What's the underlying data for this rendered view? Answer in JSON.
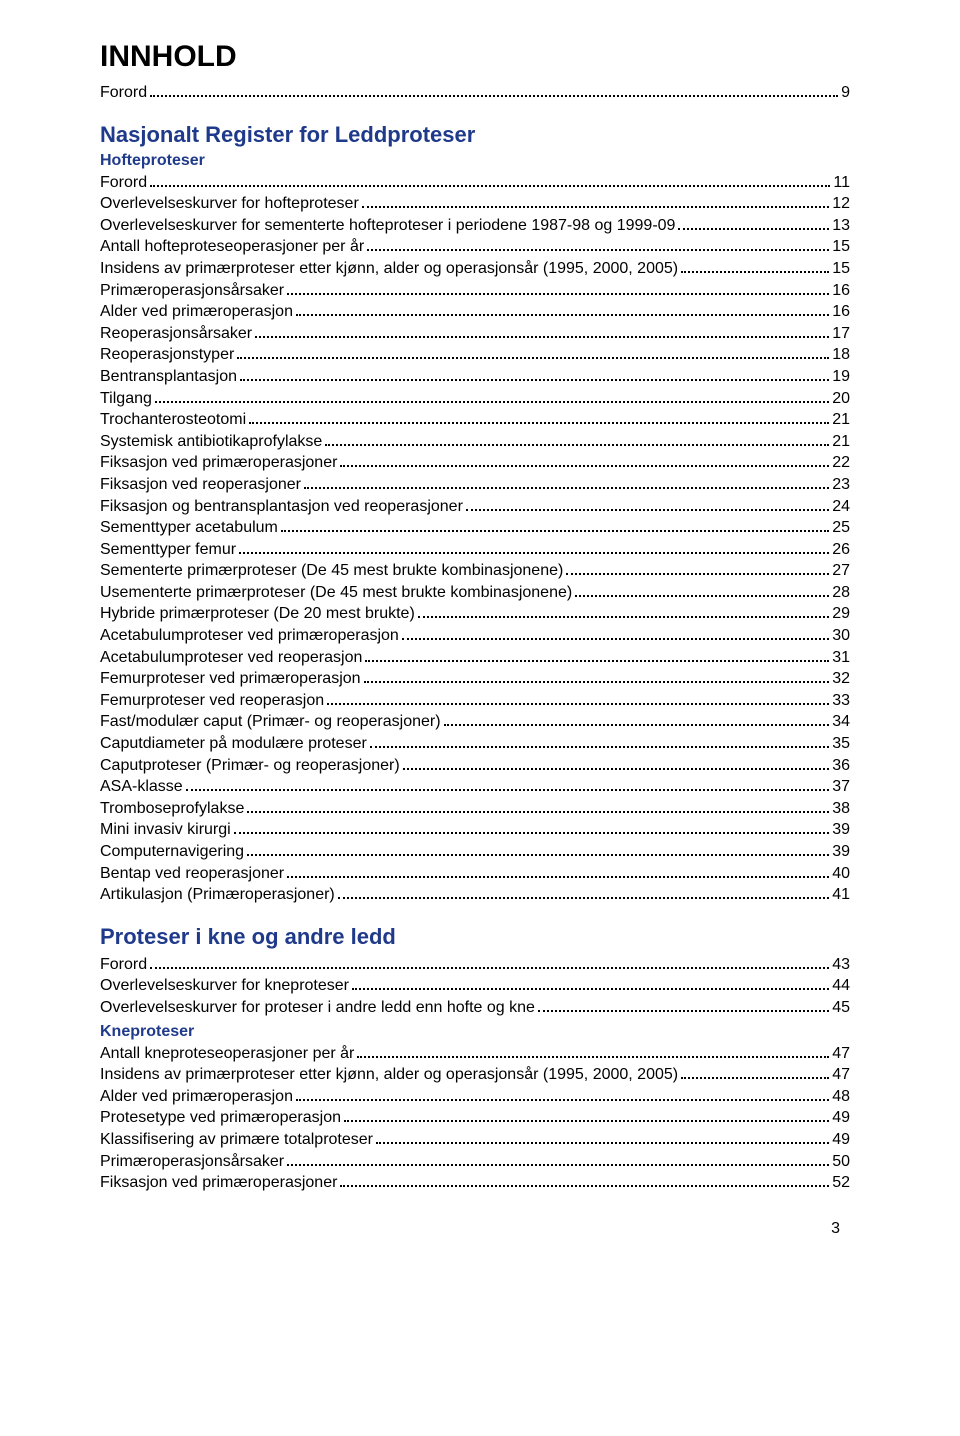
{
  "colors": {
    "text": "#000000",
    "heading_blue": "#1f3a8a",
    "background": "#ffffff",
    "dot_color": "#000000"
  },
  "typography": {
    "title_fontsize": 30,
    "heading_fontsize": 22,
    "subheading_fontsize": 16,
    "body_fontsize": 16,
    "font_family": "Arial"
  },
  "title": "INNHOLD",
  "footer_page_number": "3",
  "sections": [
    {
      "heading": null,
      "subheading": null,
      "entries": [
        {
          "label": "Forord",
          "page": "9"
        }
      ]
    },
    {
      "heading": "Nasjonalt Register for Leddproteser",
      "subheading": "Hofteproteser",
      "entries": [
        {
          "label": "Forord",
          "page": "11"
        },
        {
          "label": "Overlevelseskurver for hofteproteser",
          "page": "12"
        },
        {
          "label": "Overlevelseskurver for sementerte hofteproteser i periodene 1987-98 og 1999-09",
          "page": "13"
        },
        {
          "label": "Antall hofteproteseoperasjoner per år",
          "page": "15"
        },
        {
          "label": "Insidens av primærproteser etter kjønn, alder og operasjonsår (1995, 2000, 2005)",
          "page": "15"
        },
        {
          "label": "Primæroperasjonsårsaker",
          "page": "16"
        },
        {
          "label": "Alder ved primæroperasjon",
          "page": "16"
        },
        {
          "label": "Reoperasjonsårsaker",
          "page": "17"
        },
        {
          "label": "Reoperasjonstyper",
          "page": "18"
        },
        {
          "label": "Bentransplantasjon",
          "page": "19"
        },
        {
          "label": "Tilgang",
          "page": "20"
        },
        {
          "label": "Trochanterosteotomi",
          "page": "21"
        },
        {
          "label": "Systemisk antibiotikaprofylakse",
          "page": "21"
        },
        {
          "label": "Fiksasjon ved primæroperasjoner",
          "page": "22"
        },
        {
          "label": "Fiksasjon ved reoperasjoner",
          "page": "23"
        },
        {
          "label": "Fiksasjon og bentransplantasjon ved reoperasjoner",
          "page": "24"
        },
        {
          "label": "Sementtyper acetabulum",
          "page": "25"
        },
        {
          "label": "Sementtyper femur",
          "page": "26"
        },
        {
          "label": "Sementerte primærproteser (De 45 mest brukte kombinasjonene)",
          "page": "27"
        },
        {
          "label": "Usementerte primærproteser (De 45 mest brukte kombinasjonene)",
          "page": "28"
        },
        {
          "label": "Hybride primærproteser (De 20 mest brukte)",
          "page": "29"
        },
        {
          "label": "Acetabulumproteser ved primæroperasjon",
          "page": "30"
        },
        {
          "label": "Acetabulumproteser ved reoperasjon",
          "page": "31"
        },
        {
          "label": "Femurproteser ved primæroperasjon",
          "page": "32"
        },
        {
          "label": "Femurproteser ved reoperasjon",
          "page": "33"
        },
        {
          "label": "Fast/modulær caput (Primær- og reoperasjoner)",
          "page": "34"
        },
        {
          "label": "Caputdiameter på modulære proteser",
          "page": "35"
        },
        {
          "label": "Caputproteser (Primær- og reoperasjoner)",
          "page": "36"
        },
        {
          "label": "ASA-klasse",
          "page": "37"
        },
        {
          "label": "Tromboseprofylakse",
          "page": "38"
        },
        {
          "label": "Mini invasiv kirurgi",
          "page": "39"
        },
        {
          "label": "Computernavigering",
          "page": "39"
        },
        {
          "label": "Bentap ved reoperasjoner",
          "page": "40"
        },
        {
          "label": "Artikulasjon (Primæroperasjoner)",
          "page": "41"
        }
      ]
    },
    {
      "heading": "Proteser i kne og andre ledd",
      "subheading": null,
      "entries": [
        {
          "label": "Forord",
          "page": "43"
        },
        {
          "label": "Overlevelseskurver for kneproteser",
          "page": "44"
        },
        {
          "label": "Overlevelseskurver for proteser i andre ledd enn hofte og kne",
          "page": "45"
        }
      ]
    },
    {
      "heading": null,
      "subheading": "Kneproteser",
      "entries": [
        {
          "label": "Antall kneproteseoperasjoner per år",
          "page": "47"
        },
        {
          "label": "Insidens av primærproteser etter kjønn, alder og operasjonsår (1995, 2000, 2005)",
          "page": "47"
        },
        {
          "label": "Alder ved primæroperasjon",
          "page": "48"
        },
        {
          "label": "Protesetype ved primæroperasjon",
          "page": "49"
        },
        {
          "label": "Klassifisering av primære totalproteser",
          "page": "49"
        },
        {
          "label": "Primæroperasjonsårsaker",
          "page": "50"
        },
        {
          "label": "Fiksasjon ved primæroperasjoner",
          "page": "52"
        }
      ]
    }
  ]
}
